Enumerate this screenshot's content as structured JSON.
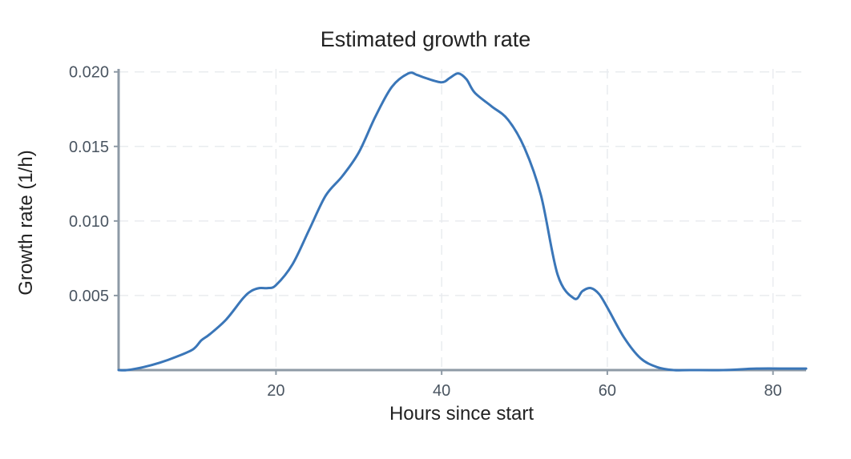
{
  "chart_data": {
    "type": "line",
    "title": "Estimated growth rate",
    "xlabel": "Hours since start",
    "ylabel": "Growth rate (1/h)",
    "xlim": [
      1,
      84
    ],
    "ylim": [
      0,
      0.0202
    ],
    "x_ticks": [
      {
        "value": 20,
        "label": "20"
      },
      {
        "value": 40,
        "label": "40"
      },
      {
        "value": 60,
        "label": "60"
      },
      {
        "value": 80,
        "label": "80"
      }
    ],
    "y_ticks": [
      {
        "value": 0.005,
        "label": "0.005"
      },
      {
        "value": 0.01,
        "label": "0.010"
      },
      {
        "value": 0.015,
        "label": "0.015"
      },
      {
        "value": 0.02,
        "label": "0.020"
      }
    ],
    "grid": true,
    "legend": "none",
    "colors": {
      "line": "#3a76b8",
      "axis": "#8e9aa6",
      "grid": "#e9ecef"
    },
    "series": [
      {
        "x": [
          1,
          2,
          4,
          6,
          8,
          10,
          11,
          12,
          14,
          16,
          17,
          18,
          19,
          20,
          22,
          24,
          26,
          28,
          30,
          32,
          34,
          36,
          37,
          38,
          40,
          41,
          42,
          43,
          44,
          46,
          48,
          50,
          52,
          54,
          56,
          57,
          58,
          59,
          60,
          62,
          64,
          66,
          68,
          70,
          74,
          78,
          82,
          84
        ],
        "y": [
          0.0,
          0.0,
          0.0002,
          0.0005,
          0.0009,
          0.0014,
          0.002,
          0.0024,
          0.0034,
          0.0048,
          0.0053,
          0.0055,
          0.0055,
          0.0057,
          0.0071,
          0.0094,
          0.0117,
          0.013,
          0.0146,
          0.017,
          0.019,
          0.0199,
          0.0198,
          0.0196,
          0.0193,
          0.0196,
          0.0199,
          0.0195,
          0.0186,
          0.0177,
          0.0168,
          0.0149,
          0.0117,
          0.0064,
          0.0048,
          0.0053,
          0.0055,
          0.0051,
          0.0042,
          0.0022,
          0.0008,
          0.0002,
          0.0,
          0.0,
          0.0,
          0.0001,
          0.0001,
          0.0001
        ]
      }
    ]
  }
}
